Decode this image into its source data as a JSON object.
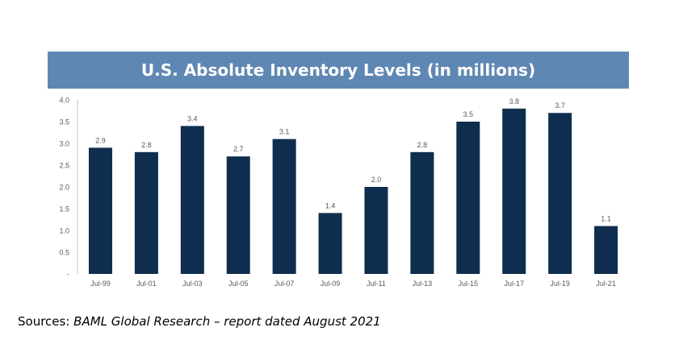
{
  "title": "U.S. Absolute Inventory Levels (in millions)",
  "source": {
    "label": "Sources:",
    "detail": "BAML Global Research – report dated August 2021"
  },
  "colors": {
    "title_band": "#5f87b3",
    "bar": "#0f2d4e",
    "tick_text": "#595959",
    "axis": "#bfbfbf"
  },
  "chart_data": {
    "type": "bar",
    "title": "U.S. Absolute Inventory Levels (in millions)",
    "xlabel": "",
    "ylabel": "",
    "categories": [
      "Jul-99",
      "Jul-01",
      "Jul-03",
      "Jul-05",
      "Jul-07",
      "Jul-09",
      "Jul-11",
      "Jul-13",
      "Jul-15",
      "Jul-17",
      "Jul-19",
      "Jul-21"
    ],
    "values": [
      2.9,
      2.8,
      3.4,
      2.7,
      3.1,
      1.4,
      2.0,
      2.8,
      3.5,
      3.8,
      3.7,
      1.1
    ],
    "value_labels": [
      "2.9",
      "2.8",
      "3.4",
      "2.7",
      "3.1",
      "1.4",
      "2.0",
      "2.8",
      "3.5",
      "3.8",
      "3.7",
      "1.1"
    ],
    "ylim": [
      0,
      4
    ],
    "y_ticks": [
      0,
      0.5,
      1,
      1.5,
      2,
      2.5,
      3,
      3.5,
      4
    ],
    "y_tick_labels": [
      "-",
      "0.5",
      "1.0",
      "1.5",
      "2.0",
      "2.5",
      "3.0",
      "3.5",
      "4.0"
    ],
    "grid": false,
    "legend": "none"
  }
}
